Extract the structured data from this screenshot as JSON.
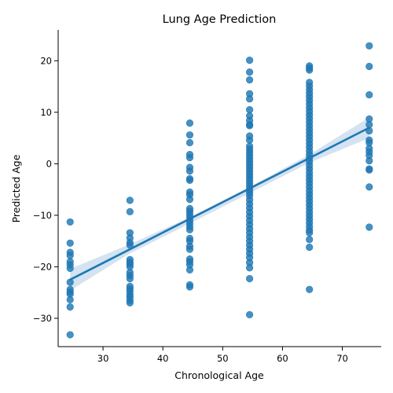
{
  "chart_data": {
    "type": "scatter",
    "title": "Lung Age Prediction",
    "xlabel": "Chronological Age",
    "ylabel": "Predicted Age",
    "xlim": [
      22.5,
      76.5
    ],
    "ylim": [
      -35.5,
      26
    ],
    "xticks": [
      30,
      40,
      50,
      60,
      70
    ],
    "yticks": [
      -30,
      -20,
      -10,
      0,
      10,
      20
    ],
    "grid": false,
    "point_color": "#1f77b4",
    "line_color": "#1f77b4",
    "band_color": "#c6d9ec",
    "regression": {
      "x": [
        24.5,
        74.5
      ],
      "y": [
        -22.5,
        7.0
      ]
    },
    "confidence_band": {
      "x": [
        24.5,
        34.5,
        44.5,
        54.5,
        64.5,
        74.5
      ],
      "lower": [
        -24.6,
        -17.4,
        -11.6,
        -5.7,
        0.2,
        5.0
      ],
      "upper": [
        -20.4,
        -15.6,
        -10.4,
        -4.5,
        1.8,
        9.0
      ]
    },
    "points": [
      {
        "x": 24.5,
        "y": [
          -11.3,
          -15.4,
          -17.2,
          -17.8,
          -19.0,
          -19.6,
          -20.3,
          -23.0,
          -24.4,
          -24.9,
          -25.3,
          -26.4,
          -27.8,
          -33.2
        ]
      },
      {
        "x": 34.5,
        "y": [
          -7.1,
          -9.3,
          -13.4,
          -14.4,
          -15.3,
          -15.8,
          -18.6,
          -19.1,
          -19.5,
          -20.0,
          -21.1,
          -21.7,
          -22.3,
          -23.8,
          -24.3,
          -24.8,
          -25.4,
          -25.9,
          -26.5,
          -27.0
        ]
      },
      {
        "x": 44.5,
        "y": [
          7.9,
          5.6,
          4.1,
          1.8,
          1.2,
          -0.7,
          -1.4,
          -2.9,
          -3.2,
          -5.5,
          -6.0,
          -6.9,
          -8.7,
          -9.2,
          -9.8,
          -10.4,
          -11.0,
          -11.6,
          -12.2,
          -12.8,
          -14.5,
          -15.0,
          -16.0,
          -16.6,
          -18.5,
          -19.0,
          -19.6,
          -20.6,
          -23.5,
          -23.9
        ]
      },
      {
        "x": 54.5,
        "y": [
          20.1,
          17.8,
          16.3,
          13.6,
          12.6,
          10.5,
          9.3,
          8.4,
          7.6,
          7.4,
          5.4,
          4.6,
          3.4,
          2.8,
          2.2,
          1.6,
          1.0,
          0.4,
          -0.2,
          -0.8,
          -1.4,
          -2.0,
          -2.6,
          -3.2,
          -3.8,
          -4.4,
          -5.0,
          -5.6,
          -6.2,
          -7.0,
          -7.8,
          -8.6,
          -9.4,
          -10.2,
          -11.0,
          -11.8,
          -12.6,
          -13.4,
          -14.2,
          -15.0,
          -15.8,
          -16.6,
          -17.4,
          -18.2,
          -19.2,
          -20.2,
          -22.3,
          -29.3
        ]
      },
      {
        "x": 64.5,
        "y": [
          19.0,
          18.6,
          18.2,
          15.8,
          15.1,
          14.4,
          13.7,
          13.0,
          12.3,
          11.6,
          10.9,
          10.2,
          9.5,
          8.8,
          8.1,
          7.4,
          6.7,
          6.0,
          5.3,
          4.6,
          3.9,
          3.2,
          2.5,
          1.8,
          1.1,
          0.4,
          -0.3,
          -1.0,
          -1.7,
          -2.4,
          -3.1,
          -3.8,
          -4.5,
          -5.2,
          -5.9,
          -6.6,
          -7.3,
          -8.0,
          -8.7,
          -9.4,
          -10.1,
          -10.8,
          -11.5,
          -12.2,
          -12.9,
          -13.4,
          -14.7,
          -16.2,
          -24.4
        ]
      },
      {
        "x": 74.5,
        "y": [
          22.9,
          18.9,
          13.4,
          8.7,
          7.6,
          6.4,
          4.6,
          4.1,
          3.0,
          2.3,
          1.6,
          0.6,
          -1.0,
          -1.2,
          -4.5,
          -12.3
        ]
      }
    ]
  }
}
